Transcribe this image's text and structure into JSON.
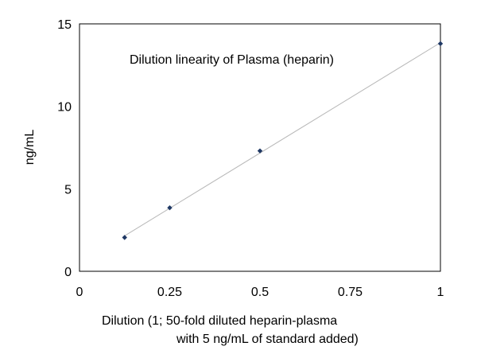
{
  "chart_data": {
    "type": "scatter",
    "title": "Dilution linearity of Plasma (heparin)",
    "xlabel_line1": "Dilution (1; 50-fold diluted heparin-plasma",
    "xlabel_line2": "with 5 ng/mL of standard added)",
    "ylabel": "ng/mL",
    "xlim": [
      0,
      1
    ],
    "ylim": [
      0,
      15
    ],
    "x_ticks": [
      {
        "value": 0,
        "label": "0"
      },
      {
        "value": 0.25,
        "label": "0.25"
      },
      {
        "value": 0.5,
        "label": "0.5"
      },
      {
        "value": 0.75,
        "label": "0.75"
      },
      {
        "value": 1,
        "label": "1"
      }
    ],
    "y_ticks": [
      {
        "value": 0,
        "label": "0"
      },
      {
        "value": 5,
        "label": "5"
      },
      {
        "value": 10,
        "label": "10"
      },
      {
        "value": 15,
        "label": "15"
      }
    ],
    "grid": false,
    "legend": "none",
    "series": [
      {
        "color": "#1f3864",
        "points": [
          {
            "x": 0.125,
            "y": 2.05
          },
          {
            "x": 0.25,
            "y": 3.85
          },
          {
            "x": 0.5,
            "y": 7.3
          },
          {
            "x": 1.0,
            "y": 13.8
          }
        ]
      }
    ],
    "trendline": {
      "type": "linear",
      "color": "#b8b8b8"
    },
    "axis_color": "#000000"
  }
}
